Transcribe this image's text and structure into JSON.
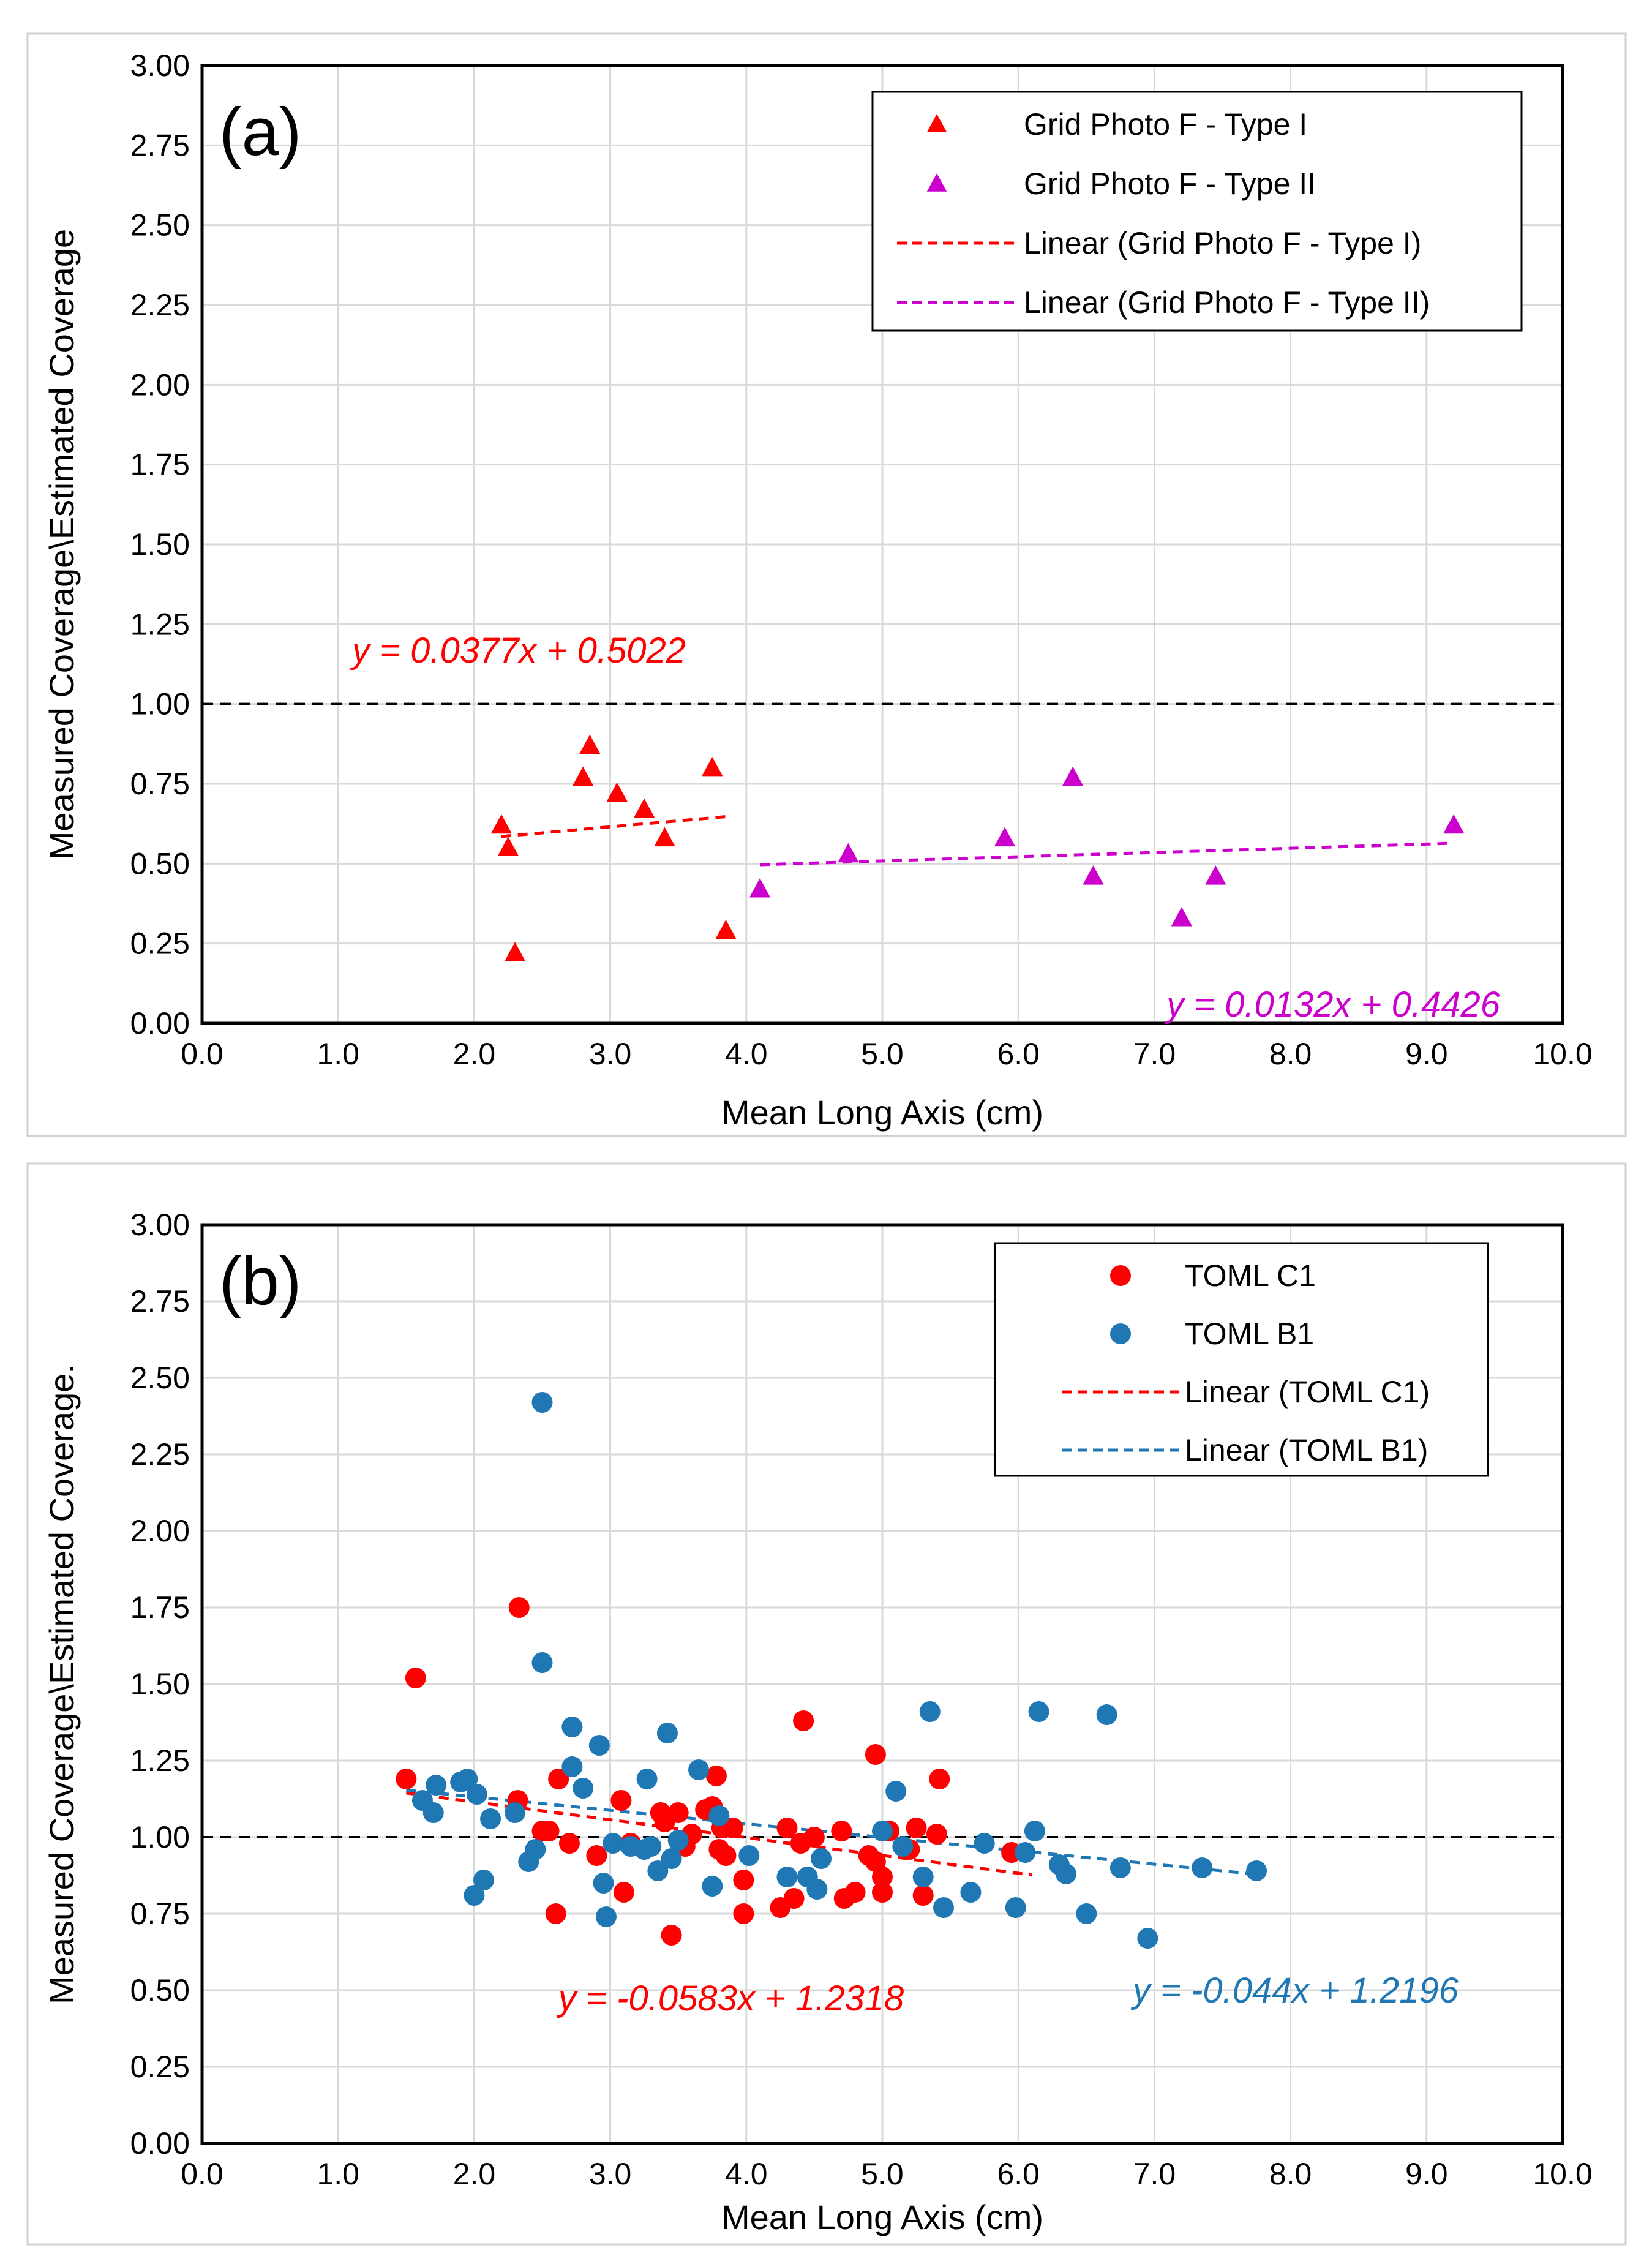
{
  "chart_data": [
    {
      "type": "scatter",
      "panel_label": "(a)",
      "xlabel": "Mean Long Axis (cm)",
      "ylabel": "Measured Coverage\\Estimated Coverage",
      "xlim": [
        0,
        10
      ],
      "ylim": [
        0,
        3
      ],
      "x_ticks": [
        "0.0",
        "1.0",
        "2.0",
        "3.0",
        "4.0",
        "5.0",
        "6.0",
        "7.0",
        "8.0",
        "9.0",
        "10.0"
      ],
      "y_ticks": [
        "0.00",
        "0.25",
        "0.50",
        "0.75",
        "1.00",
        "1.25",
        "1.50",
        "1.75",
        "2.00",
        "2.25",
        "2.50",
        "2.75",
        "3.00"
      ],
      "grid": true,
      "legend_position": "top-right",
      "reference_line": 1.0,
      "series": [
        {
          "name": "Grid Photo F - Type I",
          "color": "#ff0000",
          "marker": "triangle",
          "points": [
            [
              2.2,
              0.62
            ],
            [
              2.25,
              0.55
            ],
            [
              2.3,
              0.22
            ],
            [
              2.8,
              0.77
            ],
            [
              2.85,
              0.87
            ],
            [
              3.05,
              0.72
            ],
            [
              3.25,
              0.67
            ],
            [
              3.4,
              0.58
            ],
            [
              3.75,
              0.8
            ],
            [
              3.85,
              0.29
            ]
          ]
        },
        {
          "name": "Grid Photo F - Type II",
          "color": "#cc00cc",
          "marker": "triangle",
          "points": [
            [
              4.1,
              0.42
            ],
            [
              4.75,
              0.53
            ],
            [
              5.9,
              0.58
            ],
            [
              6.4,
              0.77
            ],
            [
              6.55,
              0.46
            ],
            [
              7.2,
              0.33
            ],
            [
              7.45,
              0.46
            ],
            [
              9.2,
              0.62
            ]
          ]
        }
      ],
      "trendlines": [
        {
          "name": "Linear (Grid Photo F - Type I)",
          "color": "#ff0000",
          "slope": 0.0377,
          "intercept": 0.5022,
          "x_range": [
            2.2,
            3.85
          ],
          "equation": "y = 0.0377x + 0.5022"
        },
        {
          "name": "Linear (Grid Photo F - Type II)",
          "color": "#cc00cc",
          "slope": 0.0132,
          "intercept": 0.4426,
          "x_range": [
            4.1,
            9.2
          ],
          "equation": "y = 0.0132x + 0.4426"
        }
      ]
    },
    {
      "type": "scatter",
      "panel_label": "(b)",
      "xlabel": "Mean Long Axis (cm)",
      "ylabel": "Measured Coverage\\Estimated Coverage.",
      "xlim": [
        0,
        10
      ],
      "ylim": [
        0,
        3
      ],
      "x_ticks": [
        "0.0",
        "1.0",
        "2.0",
        "3.0",
        "4.0",
        "5.0",
        "6.0",
        "7.0",
        "8.0",
        "9.0",
        "10.0"
      ],
      "y_ticks": [
        "0.00",
        "0.25",
        "0.50",
        "0.75",
        "1.00",
        "1.25",
        "1.50",
        "1.75",
        "2.00",
        "2.25",
        "2.50",
        "2.75",
        "3.00"
      ],
      "grid": true,
      "legend_position": "top-right",
      "reference_line": 1.0,
      "series": [
        {
          "name": "TOML C1",
          "color": "#ff0000",
          "marker": "circle",
          "points": [
            [
              1.5,
              1.19
            ],
            [
              1.57,
              1.52
            ],
            [
              2.33,
              1.75
            ],
            [
              2.32,
              1.12
            ],
            [
              2.5,
              1.02
            ],
            [
              2.55,
              1.02
            ],
            [
              2.6,
              0.75
            ],
            [
              2.62,
              1.19
            ],
            [
              2.7,
              0.98
            ],
            [
              2.9,
              0.94
            ],
            [
              3.08,
              1.12
            ],
            [
              3.1,
              0.82
            ],
            [
              3.15,
              0.98
            ],
            [
              3.37,
              1.08
            ],
            [
              3.4,
              1.05
            ],
            [
              3.45,
              0.68
            ],
            [
              3.5,
              1.08
            ],
            [
              3.55,
              0.97
            ],
            [
              3.6,
              1.01
            ],
            [
              3.7,
              1.09
            ],
            [
              3.75,
              1.1
            ],
            [
              3.78,
              1.2
            ],
            [
              3.8,
              0.96
            ],
            [
              3.82,
              1.03
            ],
            [
              3.85,
              0.94
            ],
            [
              3.9,
              1.03
            ],
            [
              3.98,
              0.86
            ],
            [
              3.98,
              0.75
            ],
            [
              4.25,
              0.77
            ],
            [
              4.3,
              1.03
            ],
            [
              4.35,
              0.8
            ],
            [
              4.4,
              0.98
            ],
            [
              4.42,
              1.38
            ],
            [
              4.5,
              1.0
            ],
            [
              4.7,
              1.02
            ],
            [
              4.72,
              0.8
            ],
            [
              4.8,
              0.82
            ],
            [
              4.9,
              0.94
            ],
            [
              4.95,
              0.92
            ],
            [
              4.95,
              1.27
            ],
            [
              5.0,
              0.87
            ],
            [
              5.0,
              0.82
            ],
            [
              5.05,
              1.02
            ],
            [
              5.2,
              0.96
            ],
            [
              5.25,
              1.03
            ],
            [
              5.3,
              0.81
            ],
            [
              5.4,
              1.01
            ],
            [
              5.42,
              1.19
            ],
            [
              5.95,
              0.95
            ]
          ]
        },
        {
          "name": "TOML B1",
          "color": "#1f77b4",
          "marker": "circle",
          "points": [
            [
              1.62,
              1.12
            ],
            [
              1.7,
              1.08
            ],
            [
              1.72,
              1.17
            ],
            [
              1.9,
              1.18
            ],
            [
              1.95,
              1.19
            ],
            [
              2.0,
              0.81
            ],
            [
              2.02,
              1.14
            ],
            [
              2.07,
              0.86
            ],
            [
              2.12,
              1.06
            ],
            [
              2.3,
              1.08
            ],
            [
              2.4,
              0.92
            ],
            [
              2.45,
              0.96
            ],
            [
              2.5,
              1.57
            ],
            [
              2.5,
              2.42
            ],
            [
              2.72,
              1.36
            ],
            [
              2.72,
              1.23
            ],
            [
              2.8,
              1.16
            ],
            [
              2.92,
              1.3
            ],
            [
              2.95,
              0.85
            ],
            [
              2.97,
              0.74
            ],
            [
              3.02,
              0.98
            ],
            [
              3.15,
              0.97
            ],
            [
              3.25,
              0.96
            ],
            [
              3.27,
              1.19
            ],
            [
              3.3,
              0.97
            ],
            [
              3.35,
              0.89
            ],
            [
              3.42,
              1.34
            ],
            [
              3.45,
              0.93
            ],
            [
              3.5,
              0.99
            ],
            [
              3.65,
              1.22
            ],
            [
              3.75,
              0.84
            ],
            [
              3.8,
              1.07
            ],
            [
              4.02,
              0.94
            ],
            [
              4.3,
              0.87
            ],
            [
              4.45,
              0.87
            ],
            [
              4.52,
              0.83
            ],
            [
              4.55,
              0.93
            ],
            [
              5.0,
              1.02
            ],
            [
              5.1,
              1.15
            ],
            [
              5.15,
              0.97
            ],
            [
              5.3,
              0.87
            ],
            [
              5.35,
              1.41
            ],
            [
              5.45,
              0.77
            ],
            [
              5.65,
              0.82
            ],
            [
              5.75,
              0.98
            ],
            [
              5.98,
              0.77
            ],
            [
              6.05,
              0.95
            ],
            [
              6.12,
              1.02
            ],
            [
              6.15,
              1.41
            ],
            [
              6.3,
              0.91
            ],
            [
              6.35,
              0.88
            ],
            [
              6.5,
              0.75
            ],
            [
              6.65,
              1.4
            ],
            [
              6.75,
              0.9
            ],
            [
              6.95,
              0.67
            ],
            [
              7.35,
              0.9
            ],
            [
              7.75,
              0.89
            ]
          ]
        }
      ],
      "trendlines": [
        {
          "name": "Linear (TOML C1)",
          "color": "#ff0000",
          "slope": -0.0583,
          "intercept": 1.2318,
          "x_range": [
            1.5,
            6.1
          ],
          "equation": "y = -0.0583x + 1.2318"
        },
        {
          "name": "Linear (TOML B1)",
          "color": "#1f77b4",
          "slope": -0.044,
          "intercept": 1.2196,
          "x_range": [
            1.5,
            7.8
          ],
          "equation": "y = -0.044x + 1.2196"
        }
      ]
    }
  ]
}
